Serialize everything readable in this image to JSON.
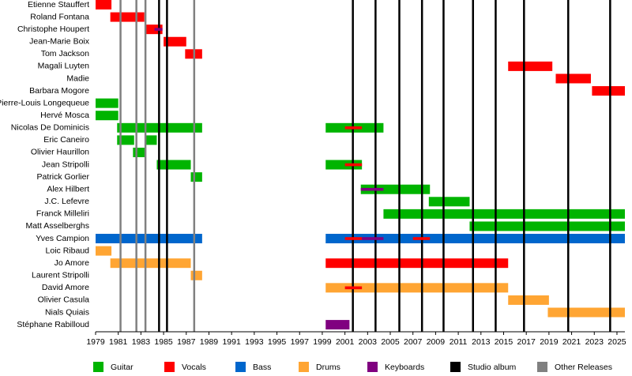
{
  "chart_data": {
    "type": "timeline",
    "categories": [
      "Etienne Stauffert",
      "Roland Fontana",
      "Christophe Houpert",
      "Jean-Marie Boix",
      "Tom Jackson",
      "Magali Luyten",
      "Madie",
      "Barbara Mogore",
      "Pierre-Louis Longequeue",
      "Hervé Mosca",
      "Nicolas De Dominicis",
      "Eric Caneiro",
      "Olivier Haurillon",
      "Jean Stripolli",
      "Patrick Gorlier",
      "Alex Hilbert",
      "J.C. Lefevre",
      "Franck Milleliri",
      "Matt Asselberghs",
      "Yves Campion",
      "Loic Ribaud",
      "Jo Amore",
      "Laurent Stripolli",
      "David Amore",
      "Olivier Casula",
      "Nials Quiais",
      "Stéphane Rabilloud"
    ],
    "xlim": [
      1979,
      2025.7
    ],
    "xticks": [
      1979,
      1981,
      1983,
      1985,
      1987,
      1989,
      1991,
      1993,
      1995,
      1997,
      1999,
      2001,
      2003,
      2005,
      2007,
      2009,
      2011,
      2013,
      2015,
      2017,
      2019,
      2021,
      2023,
      2025
    ],
    "series": [
      {
        "name": "Guitar",
        "color": "#00b400",
        "bars": [
          {
            "category": "Pierre-Louis Longequeue",
            "start": 1979,
            "end": 1981
          },
          {
            "category": "Hervé Mosca",
            "start": 1979,
            "end": 1981
          },
          {
            "category": "Nicolas De Dominicis",
            "start": 1980.9,
            "end": 1988.4
          },
          {
            "category": "Nicolas De Dominicis",
            "start": 1999.3,
            "end": 2004.4
          },
          {
            "category": "Eric Caneiro",
            "start": 1980.9,
            "end": 1982.4
          },
          {
            "category": "Eric Caneiro",
            "start": 1983.4,
            "end": 1984.4
          },
          {
            "category": "Olivier Haurillon",
            "start": 1982.3,
            "end": 1983.4
          },
          {
            "category": "Jean Stripolli",
            "start": 1984.4,
            "end": 1987.4
          },
          {
            "category": "Jean Stripolli",
            "start": 1999.3,
            "end": 2002.5
          },
          {
            "category": "Patrick Gorlier",
            "start": 1987.4,
            "end": 1988.4
          },
          {
            "category": "Alex Hilbert",
            "start": 2002.4,
            "end": 2008.5
          },
          {
            "category": "J.C. Lefevre",
            "start": 2008.4,
            "end": 2012
          },
          {
            "category": "Franck Milleliri",
            "start": 2004.4,
            "end": 2025.7
          },
          {
            "category": "Matt Asselberghs",
            "start": 2012,
            "end": 2025.7
          }
        ]
      },
      {
        "name": "Bass",
        "color": "#0066cc",
        "bars": [
          {
            "category": "Yves Campion",
            "start": 1979,
            "end": 1988.4
          },
          {
            "category": "Yves Campion",
            "start": 1999.3,
            "end": 2025.7
          }
        ]
      },
      {
        "name": "Drums",
        "color": "#ffa533",
        "bars": [
          {
            "category": "Loic Ribaud",
            "start": 1979,
            "end": 1980.4
          },
          {
            "category": "Jo Amore",
            "start": 1980.3,
            "end": 1987.4
          },
          {
            "category": "Laurent Stripolli",
            "start": 1987.4,
            "end": 1988.4
          },
          {
            "category": "David Amore",
            "start": 1999.3,
            "end": 2015.4
          },
          {
            "category": "Olivier Casula",
            "start": 2015.4,
            "end": 2019
          },
          {
            "category": "Nials Quiais",
            "start": 2018.9,
            "end": 2025.7
          }
        ]
      },
      {
        "name": "Vocals",
        "color": "#ff0000",
        "bars": [
          {
            "category": "Etienne Stauffert",
            "start": 1979,
            "end": 1980.4
          },
          {
            "category": "Roland Fontana",
            "start": 1980.3,
            "end": 1983.3
          },
          {
            "category": "Christophe Houpert",
            "start": 1983.4,
            "end": 1984.9
          },
          {
            "category": "Jean-Marie Boix",
            "start": 1985,
            "end": 1987
          },
          {
            "category": "Tom Jackson",
            "start": 1986.9,
            "end": 1988.4
          },
          {
            "category": "Magali Luyten",
            "start": 2015.4,
            "end": 2019.3
          },
          {
            "category": "Madie",
            "start": 2019.6,
            "end": 2022.7
          },
          {
            "category": "Barbara Mogore",
            "start": 2022.8,
            "end": 2025.7
          },
          {
            "category": "Jo Amore",
            "start": 1999.3,
            "end": 2015.4
          },
          {
            "category": "Nicolas De Dominicis",
            "start": 2001,
            "end": 2002.5
          },
          {
            "category": "Jean Stripolli",
            "start": 2001,
            "end": 2002.5
          },
          {
            "category": "Yves Campion",
            "start": 2001,
            "end": 2002.5
          },
          {
            "category": "Yves Campion",
            "start": 2007,
            "end": 2008.5
          },
          {
            "category": "David Amore",
            "start": 2001,
            "end": 2002.5
          }
        ]
      },
      {
        "name": "Keyboards",
        "color": "#800080",
        "bars": [
          {
            "category": "Christophe Houpert",
            "start": 1984.2,
            "end": 1984.9
          },
          {
            "category": "Alex Hilbert",
            "start": 2002.4,
            "end": 2004.4
          },
          {
            "category": "Yves Campion",
            "start": 2002.5,
            "end": 2004.4
          },
          {
            "category": "Stéphane Rabilloud",
            "start": 1999.3,
            "end": 2001.4
          }
        ]
      }
    ],
    "events": [
      {
        "name": "Studio album",
        "color": "#000000",
        "x": [
          1984.6,
          1985.3,
          2001.7,
          2003.7,
          2005.8,
          2007.8,
          2009.7,
          2012.3,
          2014.3,
          2016.8,
          2020.7,
          2024.4
        ]
      },
      {
        "name": "Other Releases",
        "color": "#808080",
        "x": [
          1981.2,
          1982.6,
          1983.4,
          1987.7
        ]
      }
    ],
    "legend_order": [
      "Guitar",
      "Vocals",
      "Bass",
      "Drums",
      "Keyboards",
      "Studio album",
      "Other Releases"
    ]
  }
}
